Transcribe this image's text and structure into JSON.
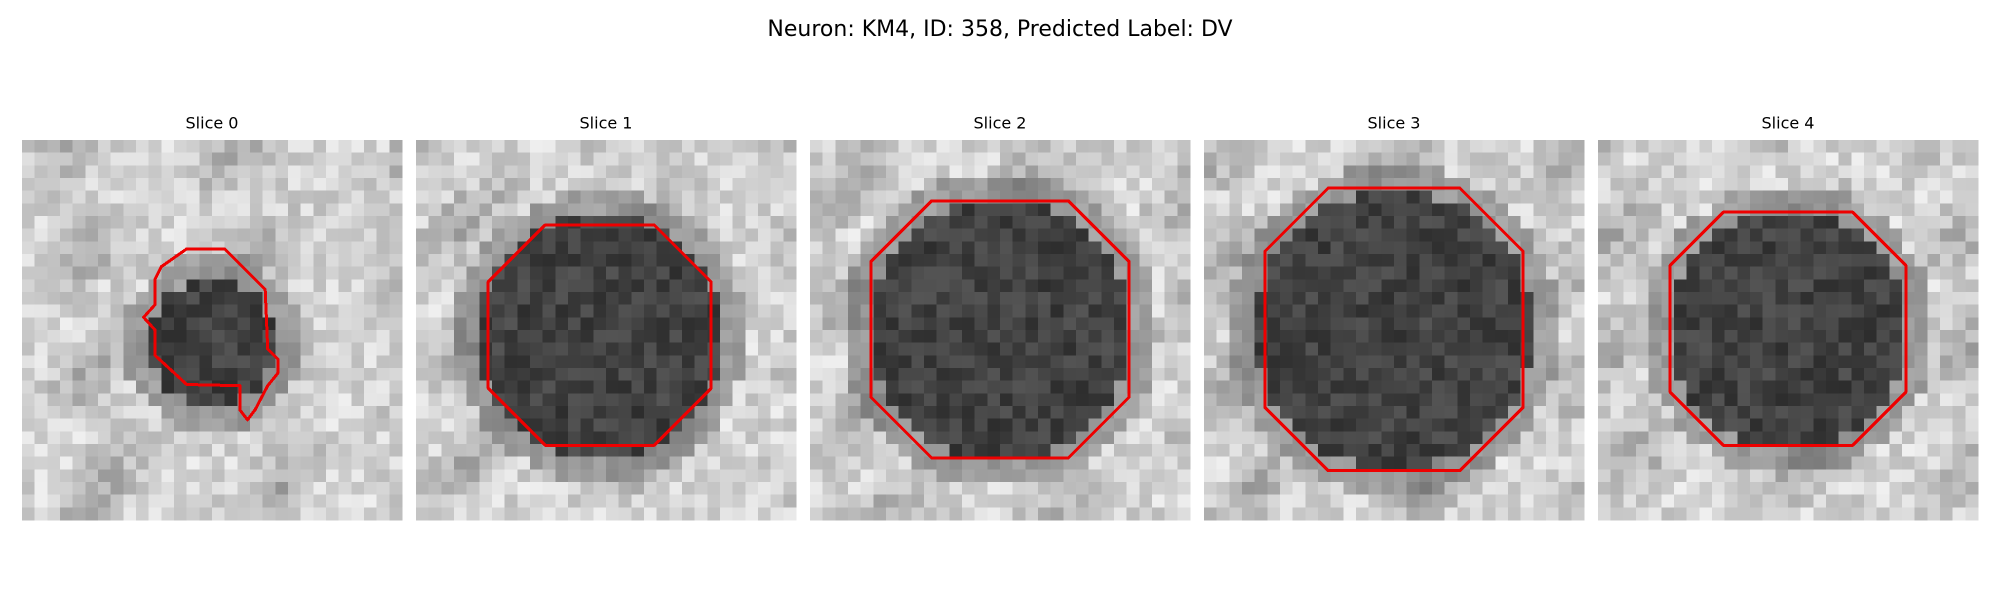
{
  "title": "Neuron: KM4, ID: 358, Predicted Label: DV",
  "panels": [
    {
      "title": "Slice 0"
    },
    {
      "title": "Slice 1"
    },
    {
      "title": "Slice 2"
    },
    {
      "title": "Slice 3"
    },
    {
      "title": "Slice 4"
    }
  ]
}
